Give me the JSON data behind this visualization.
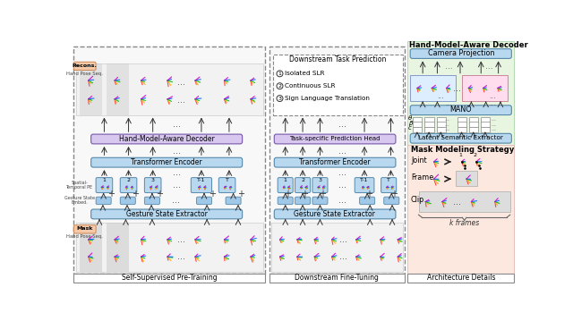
{
  "fig_width": 6.4,
  "fig_height": 3.59,
  "dpi": 100,
  "light_blue": "#b8d8f0",
  "med_blue": "#a0c4e0",
  "light_purple": "#d8c8f0",
  "light_green_bg": "#e8f5e0",
  "light_pink_bg": "#fde8e0",
  "salmon_label": "#f5c8a8",
  "panel_bg": "#f8f8f8",
  "gray_mask": "#c8c8c8",
  "panel1_label": "Self-Supervised Pre-Training",
  "panel2_label": "Downstream Fine-Tuning",
  "panel3_label": "Architecture Details",
  "top_right_title": "Hand-Model-Aware Decoder",
  "downstream_title": "Downstream Task Prediction",
  "downstream_items": [
    "Isolated SLR",
    "Continuous SLR",
    "Sign Language Translation"
  ],
  "mask_title": "Mask Modeling Strategy",
  "mask_items": [
    "Joint",
    "Frame",
    "Clip"
  ],
  "kframes": "k frames"
}
